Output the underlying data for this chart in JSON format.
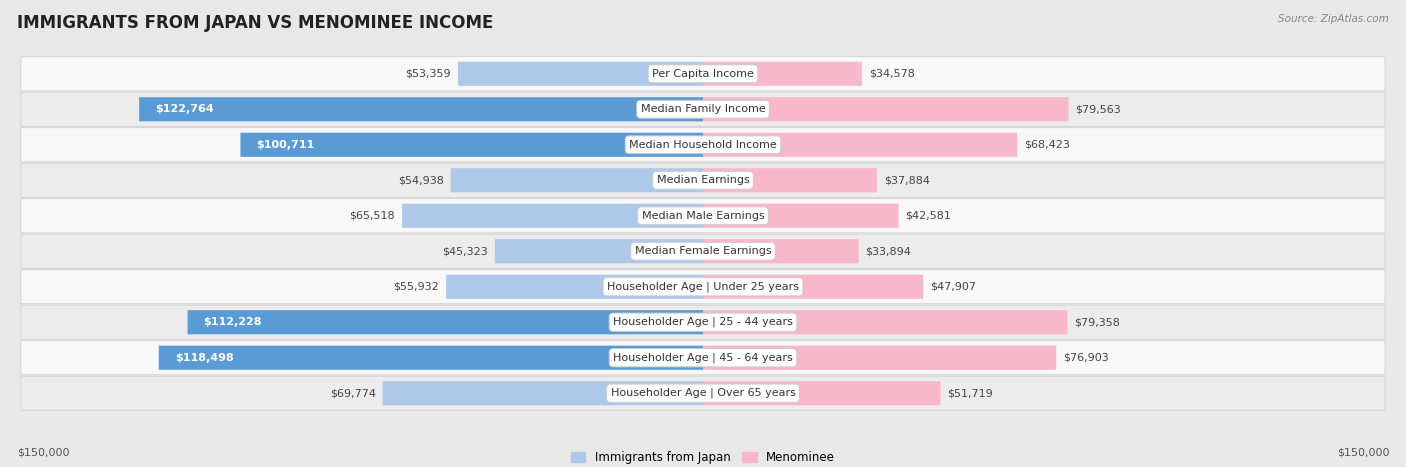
{
  "title": "IMMIGRANTS FROM JAPAN VS MENOMINEE INCOME",
  "source": "Source: ZipAtlas.com",
  "categories": [
    "Per Capita Income",
    "Median Family Income",
    "Median Household Income",
    "Median Earnings",
    "Median Male Earnings",
    "Median Female Earnings",
    "Householder Age | Under 25 years",
    "Householder Age | 25 - 44 years",
    "Householder Age | 45 - 64 years",
    "Householder Age | Over 65 years"
  ],
  "japan_values": [
    53359,
    122764,
    100711,
    54938,
    65518,
    45323,
    55932,
    112228,
    118498,
    69774
  ],
  "menominee_values": [
    34578,
    79563,
    68423,
    37884,
    42581,
    33894,
    47907,
    79358,
    76903,
    51719
  ],
  "japan_labels": [
    "$53,359",
    "$122,764",
    "$100,711",
    "$54,938",
    "$65,518",
    "$45,323",
    "$55,932",
    "$112,228",
    "$118,498",
    "$69,774"
  ],
  "menominee_labels": [
    "$34,578",
    "$79,563",
    "$68,423",
    "$37,884",
    "$42,581",
    "$33,894",
    "$47,907",
    "$79,358",
    "$76,903",
    "$51,719"
  ],
  "japan_color_light": "#adc8e8",
  "japan_color_dark": "#5b9bd5",
  "menominee_color_light": "#f8b8cc",
  "menominee_color_dark": "#f06090",
  "max_value": 150000,
  "x_label_left": "$150,000",
  "x_label_right": "$150,000",
  "legend_japan": "Immigrants from Japan",
  "legend_menominee": "Menominee",
  "bg_color": "#e8e8e8",
  "row_bg_even": "#f8f8f8",
  "row_bg_odd": "#ececec",
  "title_fontsize": 12,
  "label_fontsize": 8,
  "category_fontsize": 8,
  "source_fontsize": 7.5,
  "threshold_dark": 80000
}
